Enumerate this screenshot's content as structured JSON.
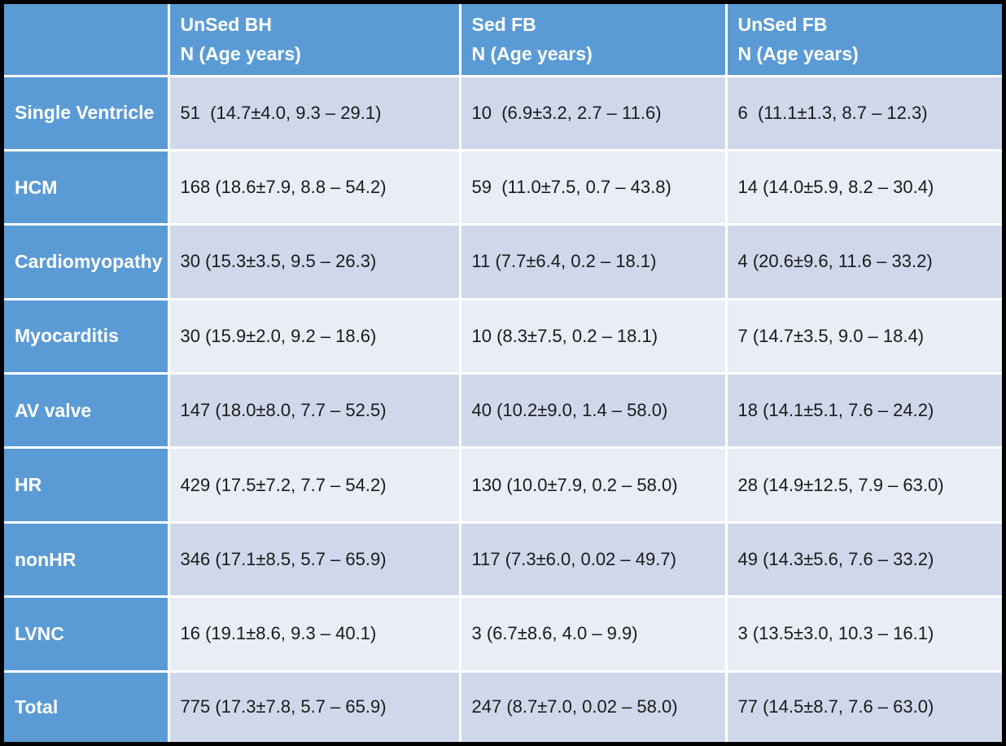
{
  "colors": {
    "header_blue": "#5B9BD5",
    "band_dark": "#CFD8EA",
    "band_light": "#E9EDF5",
    "separator_white": "#FFFFFF",
    "frame_black": "#000000",
    "header_text": "#FFFFFF",
    "cell_text": "#1A1A1A"
  },
  "table": {
    "corner_label": "",
    "columns": [
      {
        "title": "UnSed BH",
        "subtitle": "N (Age years)"
      },
      {
        "title": "Sed FB",
        "subtitle": "N (Age years)"
      },
      {
        "title": "UnSed FB",
        "subtitle": "N (Age years)"
      }
    ],
    "rows": [
      {
        "label": "Single Ventricle",
        "cells": [
          "51  (14.7±4.0, 9.3 – 29.1)",
          "10  (6.9±3.2, 2.7 – 11.6)",
          "6  (11.1±1.3, 8.7 – 12.3)"
        ]
      },
      {
        "label": "HCM",
        "cells": [
          "168 (18.6±7.9, 8.8 – 54.2)",
          "59  (11.0±7.5, 0.7 – 43.8)",
          "14 (14.0±5.9, 8.2 – 30.4)"
        ]
      },
      {
        "label": "Cardiomyopathy",
        "cells": [
          "30 (15.3±3.5, 9.5 – 26.3)",
          "11 (7.7±6.4, 0.2 – 18.1)",
          "4 (20.6±9.6, 11.6 – 33.2)"
        ]
      },
      {
        "label": "Myocarditis",
        "cells": [
          "30 (15.9±2.0, 9.2 – 18.6)",
          "10 (8.3±7.5, 0.2 – 18.1)",
          "7 (14.7±3.5, 9.0 – 18.4)"
        ]
      },
      {
        "label": "AV valve",
        "cells": [
          "147 (18.0±8.0, 7.7 – 52.5)",
          "40 (10.2±9.0, 1.4 – 58.0)",
          "18 (14.1±5.1, 7.6 – 24.2)"
        ]
      },
      {
        "label": "HR",
        "cells": [
          "429 (17.5±7.2, 7.7 – 54.2)",
          "130 (10.0±7.9, 0.2 – 58.0)",
          "28 (14.9±12.5, 7.9 – 63.0)"
        ]
      },
      {
        "label": "nonHR",
        "cells": [
          "346 (17.1±8.5, 5.7 – 65.9)",
          "117 (7.3±6.0, 0.02 – 49.7)",
          "49 (14.3±5.6, 7.6 – 33.2)"
        ]
      },
      {
        "label": "LVNC",
        "cells": [
          "16 (19.1±8.6, 9.3 – 40.1)",
          "3 (6.7±8.6, 4.0 – 9.9)",
          "3 (13.5±3.0, 10.3 – 16.1)"
        ]
      },
      {
        "label": "Total",
        "cells": [
          "775 (17.3±7.8, 5.7 – 65.9)",
          "247 (8.7±7.0, 0.02 – 58.0)",
          "77 (14.5±8.7, 7.6 – 63.0)"
        ]
      }
    ]
  }
}
